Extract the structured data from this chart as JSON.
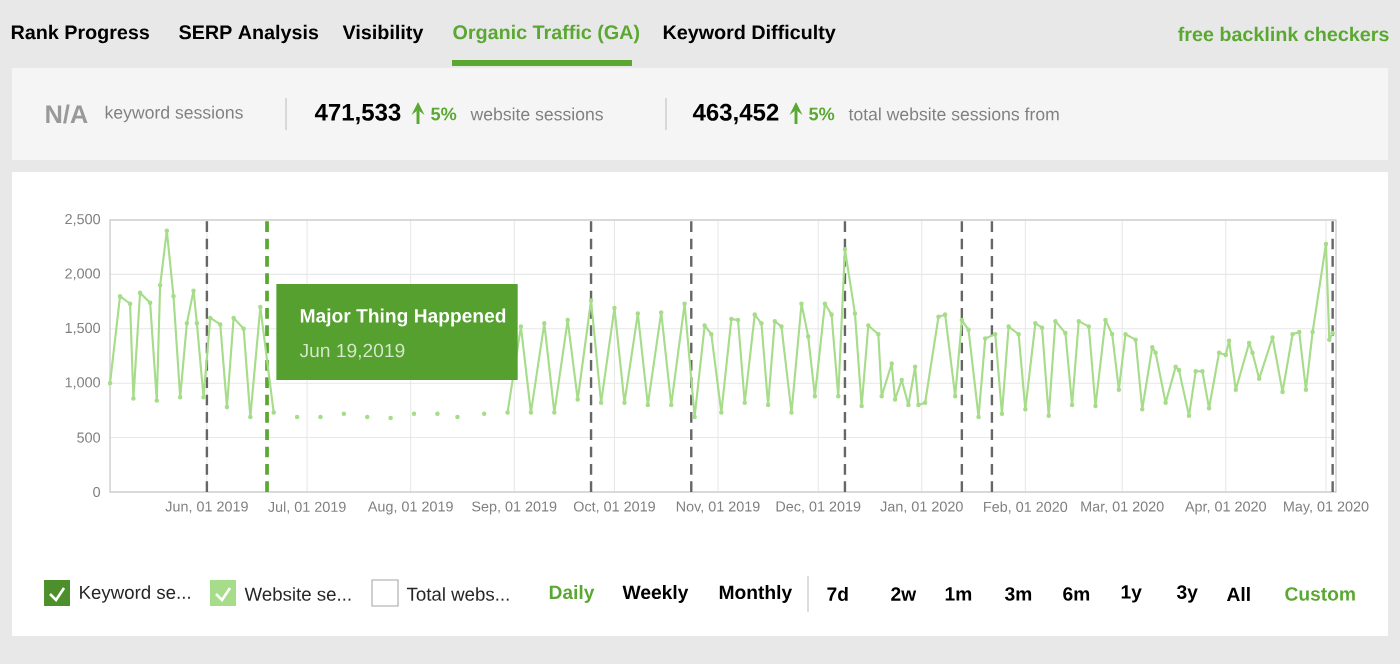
{
  "chart_data": {
    "type": "line",
    "xlim": [
      "2019-05-03",
      "2020-05-04"
    ],
    "xticks": [
      {
        "value": "2019-06-01",
        "label": "Jun, 01 2019"
      },
      {
        "value": "2019-07-01",
        "label": "Jul, 01 2019"
      },
      {
        "value": "2019-08-01",
        "label": "Aug, 01 2019"
      },
      {
        "value": "2019-09-01",
        "label": "Sep, 01 2019"
      },
      {
        "value": "2019-10-01",
        "label": "Oct, 01 2019"
      },
      {
        "value": "2019-11-01",
        "label": "Nov, 01 2019"
      },
      {
        "value": "2019-12-01",
        "label": "Dec, 01 2019"
      },
      {
        "value": "2020-01-01",
        "label": "Jan, 01 2020"
      },
      {
        "value": "2020-02-01",
        "label": "Feb, 01 2020"
      },
      {
        "value": "2020-03-01",
        "label": "Mar, 01 2020"
      },
      {
        "value": "2020-04-01",
        "label": "Apr, 01 2020"
      },
      {
        "value": "2020-05-01",
        "label": "May, 01 2020"
      }
    ],
    "ylim": [
      0,
      2500
    ],
    "yticks": [
      {
        "value": 0,
        "label": "0"
      },
      {
        "value": 500,
        "label": "500"
      },
      {
        "value": 1000,
        "label": "1,000"
      },
      {
        "value": 1500,
        "label": "1,500"
      },
      {
        "value": 2000,
        "label": "2,000"
      },
      {
        "value": 2500,
        "label": "2,500"
      }
    ],
    "grid": true,
    "legend": "bottom left",
    "marker": "circle",
    "line_style": "solid",
    "series": [
      {
        "name": "Website se...",
        "color": "#a6dc8a",
        "x": [
          "2019-05-03",
          "2019-05-06",
          "2019-05-09",
          "2019-05-10",
          "2019-05-12",
          "2019-05-15",
          "2019-05-17",
          "2019-05-18",
          "2019-05-20",
          "2019-05-22",
          "2019-05-24",
          "2019-05-26",
          "2019-05-28",
          "2019-05-29",
          "2019-05-31",
          "2019-06-02",
          "2019-06-05",
          "2019-06-07",
          "2019-06-09",
          "2019-06-12",
          "2019-06-14",
          "2019-06-17",
          "2019-06-21",
          "2019-06-24",
          "2019-06-28",
          "2019-07-01",
          "2019-07-05",
          "2019-07-08",
          "2019-07-12",
          "2019-07-15",
          "2019-07-19",
          "2019-07-22",
          "2019-07-26",
          "2019-07-29",
          "2019-08-02",
          "2019-08-05",
          "2019-08-09",
          "2019-08-12",
          "2019-08-15",
          "2019-08-19",
          "2019-08-23",
          "2019-08-26",
          "2019-08-30",
          "2019-09-03",
          "2019-09-06",
          "2019-09-10",
          "2019-09-13",
          "2019-09-17",
          "2019-09-20",
          "2019-09-24",
          "2019-09-27",
          "2019-10-01",
          "2019-10-04",
          "2019-10-08",
          "2019-10-11",
          "2019-10-15",
          "2019-10-18",
          "2019-10-22",
          "2019-10-25",
          "2019-10-28",
          "2019-10-30",
          "2019-11-02",
          "2019-11-05",
          "2019-11-07",
          "2019-11-09",
          "2019-11-12",
          "2019-11-14",
          "2019-11-16",
          "2019-11-18",
          "2019-11-20",
          "2019-11-23",
          "2019-11-26",
          "2019-11-28",
          "2019-11-30",
          "2019-12-03",
          "2019-12-05",
          "2019-12-07",
          "2019-12-09",
          "2019-12-12",
          "2019-12-14",
          "2019-12-16",
          "2019-12-19",
          "2019-12-20",
          "2019-12-23",
          "2019-12-24",
          "2019-12-26",
          "2019-12-28",
          "2019-12-30",
          "2019-12-31",
          "2020-01-02",
          "2020-01-06",
          "2020-01-08",
          "2020-01-11",
          "2020-01-13",
          "2020-01-15",
          "2020-01-18",
          "2020-01-20",
          "2020-01-23",
          "2020-01-25",
          "2020-01-27",
          "2020-01-30",
          "2020-02-01",
          "2020-02-04",
          "2020-02-06",
          "2020-02-08",
          "2020-02-10",
          "2020-02-13",
          "2020-02-15",
          "2020-02-17",
          "2020-02-20",
          "2020-02-22",
          "2020-02-25",
          "2020-02-27",
          "2020-02-29",
          "2020-03-02",
          "2020-03-05",
          "2020-03-07",
          "2020-03-10",
          "2020-03-11",
          "2020-03-14",
          "2020-03-17",
          "2020-03-18",
          "2020-03-21",
          "2020-03-23",
          "2020-03-25",
          "2020-03-27",
          "2020-03-30",
          "2020-04-01",
          "2020-04-02",
          "2020-04-04",
          "2020-04-08",
          "2020-04-09",
          "2020-04-11",
          "2020-04-15",
          "2020-04-18",
          "2020-04-21",
          "2020-04-23",
          "2020-04-25",
          "2020-04-27",
          "2020-05-01",
          "2020-05-02",
          "2020-05-03"
        ],
        "values": [
          1000,
          1800,
          1730,
          860,
          1830,
          1740,
          840,
          1900,
          2400,
          1800,
          870,
          1550,
          1850,
          1550,
          870,
          1600,
          1540,
          780,
          1600,
          1500,
          690,
          1700,
          730,
          null,
          690,
          null,
          690,
          null,
          720,
          null,
          690,
          null,
          680,
          null,
          720,
          null,
          720,
          null,
          690,
          null,
          720,
          null,
          730,
          1520,
          730,
          1550,
          730,
          1580,
          850,
          1760,
          820,
          1690,
          820,
          1640,
          800,
          1650,
          800,
          1730,
          690,
          1530,
          1450,
          730,
          1590,
          1580,
          820,
          1630,
          1550,
          800,
          1570,
          1520,
          730,
          1730,
          1430,
          880,
          1730,
          1630,
          880,
          2230,
          1640,
          790,
          1530,
          1450,
          880,
          1180,
          850,
          1030,
          800,
          1150,
          800,
          820,
          1610,
          1630,
          880,
          1580,
          1490,
          690,
          1410,
          1450,
          720,
          1520,
          1450,
          760,
          1550,
          1510,
          700,
          1570,
          1460,
          800,
          1570,
          1520,
          790,
          1580,
          1450,
          940,
          1450,
          1400,
          760,
          1330,
          1280,
          820,
          1150,
          1120,
          700,
          1110,
          1110,
          770,
          1280,
          1260,
          1390,
          940,
          1370,
          1280,
          1040,
          1420,
          920,
          1450,
          1470,
          940,
          1470,
          2280,
          1400,
          1460
        ]
      }
    ],
    "ref_lines": [
      {
        "axis": "x",
        "value": "2019-06-01",
        "color": "#666666",
        "line_style": "dashed"
      },
      {
        "axis": "x",
        "value": "2019-06-19",
        "label": "Major Thing Happened",
        "color": "#5aa832",
        "line_style": "dashed"
      },
      {
        "axis": "x",
        "value": "2019-09-24",
        "color": "#666666",
        "line_style": "dashed"
      },
      {
        "axis": "x",
        "value": "2019-10-24",
        "color": "#666666",
        "line_style": "dashed"
      },
      {
        "axis": "x",
        "value": "2019-12-09",
        "color": "#666666",
        "line_style": "dashed"
      },
      {
        "axis": "x",
        "value": "2020-01-13",
        "color": "#666666",
        "line_style": "dashed"
      },
      {
        "axis": "x",
        "value": "2020-01-22",
        "color": "#666666",
        "line_style": "dashed"
      },
      {
        "axis": "x",
        "value": "2020-05-03",
        "color": "#666666",
        "line_style": "dashed"
      }
    ],
    "annotations": [
      "Rank Progress",
      "SERP Analysis",
      "Visibility",
      "Organic Traffic (GA)",
      "Keyword Difficulty",
      "free backlink checkers",
      "N/A",
      "keyword sessions",
      "471,533",
      "5%",
      "website sessions",
      "463,452",
      "5%",
      "total website sessions from",
      "Keyword se...",
      "Total webs...",
      "Daily",
      "Weekly",
      "Monthly",
      "7d",
      "2w",
      "1m",
      "3m",
      "6m",
      "1y",
      "3y",
      "All",
      "Custom",
      {
        "text": "Jun 19,2019",
        "x": "2019-06-19",
        "y": 1290
      }
    ]
  }
}
